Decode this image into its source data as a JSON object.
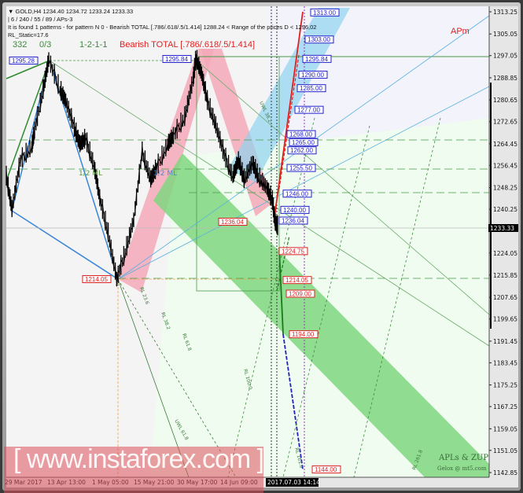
{
  "header": {
    "line1": "▼ GOLD,H4  1234.40 1234.72 1233.24 1233.33",
    "line2": "| 6 / 240 / 55 / 89 / APs-3",
    "line3": "It is found 1 patterns  -  for pattern N 0 - Bearish TOTAL [.786/.618/.5/1.414]  1288.24 < Range of the prices D < 1296,02",
    "line4": "RL_Static=17.6",
    "count": "332",
    "ratio": "0/3",
    "sequence": "1-2-1-1",
    "pattern": "Bearish TOTAL [.786/.618/.5/1.414]"
  },
  "annotations": {
    "apm": "APm",
    "half_ml_left": "1/2 ML",
    "half_ml_right": "1/2 ML",
    "point_2": "2",
    "credits_1": "APLs & ZUP",
    "credits_2": "Gelox @ mt5.com",
    "fib_labels": [
      "RL 38.2",
      "RL 61.8",
      "RL 100.0",
      "UWL 61.8",
      "RL 161.8",
      "RL 261.8",
      "UWL 38.2",
      "RL 23.6"
    ]
  },
  "watermark": "[ www.instaforex.com ]",
  "colors": {
    "candles": "#000000",
    "bullish_target": "#2222cc",
    "bearish_target": "#dd2222",
    "channel_green": "#7fd67f",
    "band_pink": "#f4a8b8",
    "band_blue": "#8fd3ee",
    "background": "#f4f4f4"
  },
  "chart_data": {
    "type": "line",
    "symbol": "GOLD",
    "timeframe": "H4",
    "ohlc_last": {
      "open": 1234.4,
      "high": 1234.72,
      "low": 1233.24,
      "close": 1233.33
    },
    "current_price": "1233.33",
    "ylim": [
      1142.85,
      1313.25
    ],
    "y_ticks": [
      "1313.25",
      "1305.05",
      "1297.05",
      "1288.85",
      "1280.65",
      "1272.65",
      "1264.45",
      "1256.45",
      "1248.25",
      "1240.25",
      "1224.05",
      "1215.85",
      "1207.65",
      "1199.65",
      "1191.45",
      "1183.45",
      "1175.25",
      "1167.25",
      "1159.05",
      "1151.05",
      "1142.85"
    ],
    "x_ticks": [
      "29 Mar 2017",
      "13 Apr 13:00",
      "1 May 05:00",
      "15 May 21:00",
      "30 May 17:00",
      "14 Jun 09:00"
    ],
    "cursor_time": "2017.07.03 14:14",
    "series": [
      {
        "dates": [
          "2017-03-29",
          "2017-03-31",
          "2017-04-03",
          "2017-04-07",
          "2017-04-08",
          "2017-04-11",
          "2017-04-13",
          "2017-04-17",
          "2017-04-19",
          "2017-04-22",
          "2017-04-24",
          "2017-04-26",
          "2017-04-29",
          "2017-05-01",
          "2017-05-04",
          "2017-05-07",
          "2017-05-10",
          "2017-05-13",
          "2017-05-16",
          "2017-05-19",
          "2017-05-21",
          "2017-05-25",
          "2017-05-27",
          "2017-05-31",
          "2017-06-03",
          "2017-06-04",
          "2017-06-06",
          "2017-06-08",
          "2017-06-11",
          "2017-06-14",
          "2017-06-17",
          "2017-06-19",
          "2017-06-21",
          "2017-06-24",
          "2017-06-26",
          "2017-06-29",
          "2017-07-01",
          "2017-07-02",
          "2017-07-03"
        ],
        "values": [
          1252,
          1240,
          1258,
          1263,
          1269,
          1284,
          1295.28,
          1284,
          1280,
          1270,
          1264,
          1266,
          1256,
          1244,
          1231,
          1214.05,
          1224,
          1236,
          1261,
          1251,
          1255,
          1264,
          1267,
          1274,
          1288,
          1295.84,
          1290,
          1280,
          1271,
          1260,
          1252,
          1258,
          1251,
          1257,
          1252,
          1248,
          1243,
          1235,
          1233.33
        ]
      }
    ],
    "pivot_labels": [
      {
        "text": "1295.28",
        "kind": "bullish"
      },
      {
        "text": "1295.84",
        "kind": "bullish"
      },
      {
        "text": "1214.05",
        "kind": "bearish"
      },
      {
        "text": "1236.04",
        "kind": "bearish"
      }
    ],
    "target_levels": [
      {
        "text": "1313.00",
        "kind": "bullish"
      },
      {
        "text": "1303.00",
        "kind": "bullish"
      },
      {
        "text": "1295.84",
        "kind": "bullish"
      },
      {
        "text": "1290.00",
        "kind": "bullish"
      },
      {
        "text": "1285.00",
        "kind": "bullish"
      },
      {
        "text": "1277.00",
        "kind": "bullish"
      },
      {
        "text": "1268.00",
        "kind": "bullish"
      },
      {
        "text": "1265.00",
        "kind": "bullish"
      },
      {
        "text": "1262.00",
        "kind": "bullish"
      },
      {
        "text": "1255.50",
        "kind": "bullish"
      },
      {
        "text": "1246.00",
        "kind": "bullish"
      },
      {
        "text": "1240.00",
        "kind": "bullish"
      },
      {
        "text": "1236.04",
        "kind": "bullish"
      },
      {
        "text": "1224.75",
        "kind": "bearish"
      },
      {
        "text": "1214.05",
        "kind": "bearish"
      },
      {
        "text": "1209.00",
        "kind": "bearish"
      },
      {
        "text": "1194.00",
        "kind": "bearish"
      },
      {
        "text": "1144.00",
        "kind": "bearish"
      }
    ]
  }
}
